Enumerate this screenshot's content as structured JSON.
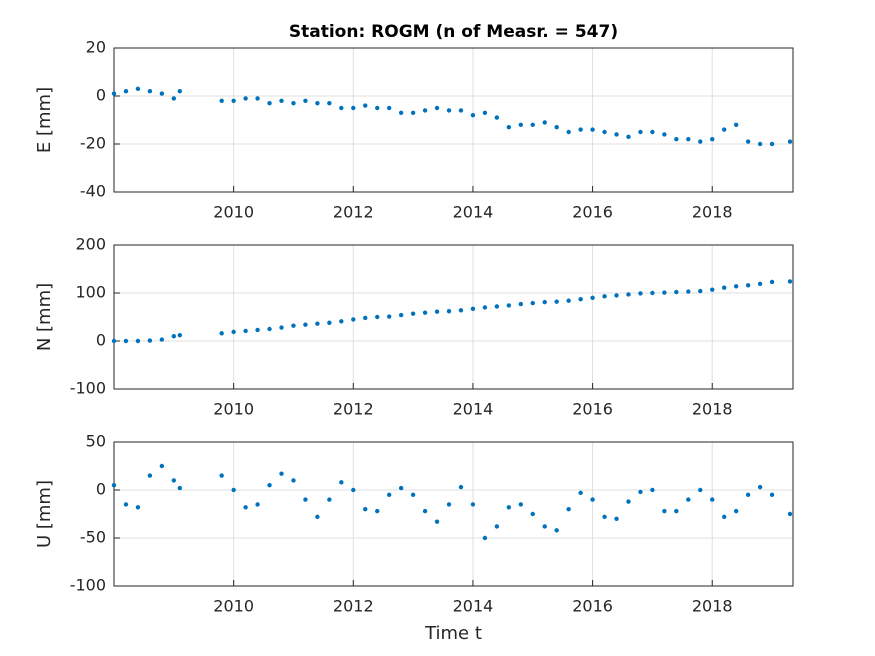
{
  "chart_data": [
    {
      "type": "scatter",
      "title": "Station: ROGM (n of Measr. = 547)",
      "ylabel": "E [mm]",
      "x": [
        2008.0,
        2008.2,
        2008.4,
        2008.6,
        2008.8,
        2009.0,
        2009.1,
        2009.8,
        2010.0,
        2010.2,
        2010.4,
        2010.6,
        2010.8,
        2011.0,
        2011.2,
        2011.4,
        2011.6,
        2011.8,
        2012.0,
        2012.2,
        2012.4,
        2012.6,
        2012.8,
        2013.0,
        2013.2,
        2013.4,
        2013.6,
        2013.8,
        2014.0,
        2014.2,
        2014.4,
        2014.6,
        2014.8,
        2015.0,
        2015.2,
        2015.4,
        2015.6,
        2015.8,
        2016.0,
        2016.2,
        2016.4,
        2016.6,
        2016.8,
        2017.0,
        2017.2,
        2017.4,
        2017.6,
        2017.8,
        2018.0,
        2018.2,
        2018.4,
        2018.6,
        2018.8,
        2019.0,
        2019.3
      ],
      "values": [
        1,
        2,
        3,
        2,
        1,
        -1,
        2,
        -2,
        -2,
        -1,
        -1,
        -3,
        -2,
        -3,
        -2,
        -3,
        -3,
        -5,
        -5,
        -4,
        -5,
        -5,
        -7,
        -7,
        -6,
        -5,
        -6,
        -6,
        -8,
        -7,
        -9,
        -13,
        -12,
        -12,
        -11,
        -13,
        -15,
        -14,
        -14,
        -15,
        -16,
        -17,
        -15,
        -15,
        -16,
        -18,
        -18,
        -19,
        -18,
        -14,
        -12,
        -19,
        -20,
        -20,
        -19
      ],
      "color": "#0072bd",
      "xlim": [
        2008.0,
        2019.35
      ],
      "ylim": [
        -40,
        20
      ],
      "xticks": [
        2010,
        2012,
        2014,
        2016,
        2018
      ],
      "yticks": [
        -40,
        -20,
        0,
        20
      ],
      "grid": true
    },
    {
      "type": "scatter",
      "ylabel": "N [mm]",
      "x": [
        2008.0,
        2008.2,
        2008.4,
        2008.6,
        2008.8,
        2009.0,
        2009.1,
        2009.8,
        2010.0,
        2010.2,
        2010.4,
        2010.6,
        2010.8,
        2011.0,
        2011.2,
        2011.4,
        2011.6,
        2011.8,
        2012.0,
        2012.2,
        2012.4,
        2012.6,
        2012.8,
        2013.0,
        2013.2,
        2013.4,
        2013.6,
        2013.8,
        2014.0,
        2014.2,
        2014.4,
        2014.6,
        2014.8,
        2015.0,
        2015.2,
        2015.4,
        2015.6,
        2015.8,
        2016.0,
        2016.2,
        2016.4,
        2016.6,
        2016.8,
        2017.0,
        2017.2,
        2017.4,
        2017.6,
        2017.8,
        2018.0,
        2018.2,
        2018.4,
        2018.6,
        2018.8,
        2019.0,
        2019.3
      ],
      "values": [
        0,
        0,
        0,
        1,
        3,
        10,
        12,
        16,
        19,
        21,
        23,
        25,
        28,
        32,
        34,
        36,
        38,
        41,
        45,
        48,
        50,
        51,
        54,
        57,
        59,
        61,
        62,
        64,
        67,
        70,
        72,
        74,
        77,
        79,
        81,
        82,
        84,
        87,
        90,
        93,
        95,
        97,
        99,
        100,
        101,
        102,
        103,
        104,
        107,
        111,
        114,
        116,
        119,
        123,
        124
      ],
      "color": "#0072bd",
      "xlim": [
        2008.0,
        2019.35
      ],
      "ylim": [
        -100,
        200
      ],
      "xticks": [
        2010,
        2012,
        2014,
        2016,
        2018
      ],
      "yticks": [
        -100,
        0,
        100,
        200
      ],
      "grid": true
    },
    {
      "type": "scatter",
      "ylabel": "U [mm]",
      "xlabel": "Time t",
      "x": [
        2008.0,
        2008.2,
        2008.4,
        2008.6,
        2008.8,
        2009.0,
        2009.1,
        2009.8,
        2010.0,
        2010.2,
        2010.4,
        2010.6,
        2010.8,
        2011.0,
        2011.2,
        2011.4,
        2011.6,
        2011.8,
        2012.0,
        2012.2,
        2012.4,
        2012.6,
        2012.8,
        2013.0,
        2013.2,
        2013.4,
        2013.6,
        2013.8,
        2014.0,
        2014.2,
        2014.4,
        2014.6,
        2014.8,
        2015.0,
        2015.2,
        2015.4,
        2015.6,
        2015.8,
        2016.0,
        2016.2,
        2016.4,
        2016.6,
        2016.8,
        2017.0,
        2017.2,
        2017.4,
        2017.6,
        2017.8,
        2018.0,
        2018.2,
        2018.4,
        2018.6,
        2018.8,
        2019.0,
        2019.3
      ],
      "values": [
        5,
        -15,
        -18,
        15,
        25,
        10,
        2,
        15,
        0,
        -18,
        -15,
        5,
        17,
        10,
        -10,
        -28,
        -10,
        8,
        0,
        -20,
        -22,
        -5,
        2,
        -5,
        -22,
        -33,
        -15,
        3,
        -15,
        -50,
        -38,
        -18,
        -15,
        -25,
        -38,
        -42,
        -20,
        -3,
        -10,
        -28,
        -30,
        -12,
        -2,
        0,
        -22,
        -22,
        -10,
        0,
        -10,
        -28,
        -22,
        -5,
        3,
        -5,
        -25
      ],
      "color": "#0072bd",
      "xlim": [
        2008.0,
        2019.35
      ],
      "ylim": [
        -100,
        50
      ],
      "xticks": [
        2010,
        2012,
        2014,
        2016,
        2018
      ],
      "yticks": [
        -100,
        -50,
        0,
        50
      ],
      "grid": true
    }
  ]
}
